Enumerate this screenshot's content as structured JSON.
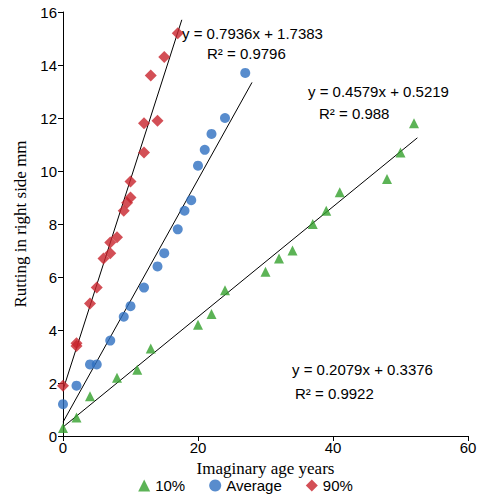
{
  "chart_data": {
    "type": "scatter",
    "x_label": "Imaginary age years",
    "y_label": "Rutting in right side mm",
    "xlim": [
      0,
      60
    ],
    "xticks": [
      0,
      20,
      40,
      60
    ],
    "ylim": [
      0,
      16
    ],
    "yticks": [
      0,
      2,
      4,
      6,
      8,
      10,
      12,
      14,
      16
    ],
    "grid": false,
    "legend": "bottom",
    "series": [
      {
        "name": "10%",
        "color": "#33a02c",
        "marker": "triangle",
        "x": [
          0,
          2,
          4,
          8,
          11,
          13,
          20,
          22,
          24,
          30,
          32,
          34,
          37,
          39,
          41,
          48,
          50,
          52
        ],
        "values": [
          0.3,
          0.7,
          1.5,
          2.2,
          2.5,
          3.3,
          4.2,
          4.6,
          5.5,
          6.2,
          6.7,
          7.0,
          8.0,
          8.5,
          9.2,
          9.7,
          10.7,
          11.8
        ],
        "trendline": {
          "slope": 0.2079,
          "intercept": 0.3376,
          "x_range": [
            0,
            52.5
          ],
          "equation": "y = 0.2079x + 0.3376",
          "r2": "R² = 0.9922"
        }
      },
      {
        "name": "Average",
        "color": "#2e6fc0",
        "marker": "circle",
        "x": [
          0,
          2,
          4,
          5,
          7,
          9,
          10,
          12,
          14,
          15,
          17,
          18,
          19,
          20,
          21,
          22,
          24,
          27
        ],
        "values": [
          1.2,
          1.9,
          2.7,
          2.7,
          3.6,
          4.5,
          4.9,
          5.6,
          6.4,
          6.9,
          7.8,
          8.5,
          8.9,
          10.2,
          10.8,
          11.4,
          12.0,
          13.7
        ],
        "trendline": {
          "slope": 0.4579,
          "intercept": 0.5219,
          "x_range": [
            0,
            28
          ],
          "equation": "y = 0.4579x + 0.5219",
          "r2": "R² = 0.988"
        }
      },
      {
        "name": "90%",
        "color": "#c8232c",
        "marker": "diamond",
        "x": [
          0,
          2,
          2,
          4,
          5,
          6,
          7,
          7,
          8,
          9,
          9.5,
          10,
          10,
          12,
          12,
          13,
          14,
          15,
          17
        ],
        "values": [
          1.9,
          3.5,
          3.4,
          5.0,
          5.6,
          6.7,
          6.9,
          7.3,
          7.5,
          8.5,
          8.8,
          9.0,
          9.6,
          10.7,
          11.8,
          13.6,
          11.9,
          14.3,
          15.2
        ],
        "trendline": {
          "slope": 0.7936,
          "intercept": 1.7383,
          "x_range": [
            0,
            17.6
          ],
          "equation": "y = 0.7936x + 1.7383",
          "r2": "R² = 0.9796"
        }
      }
    ]
  }
}
